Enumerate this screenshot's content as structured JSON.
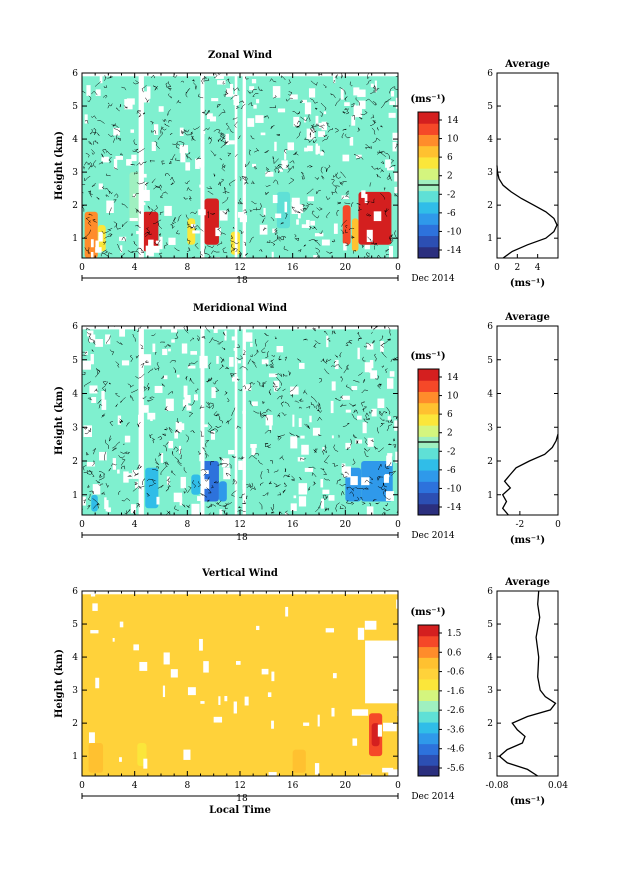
{
  "chart_data": [
    {
      "type": "heatmap",
      "title": "Zonal Wind",
      "xlabel": "",
      "ylabel": "Height (km)",
      "x_ticks": [
        "0",
        "4",
        "8",
        "12",
        "16",
        "20",
        "0"
      ],
      "x_range": [
        0,
        24
      ],
      "y_ticks": [
        "1",
        "2",
        "3",
        "4",
        "5",
        "6"
      ],
      "y_range": [
        0.4,
        6
      ],
      "date_label": "18",
      "month_label": "Dec 2014",
      "colorbar": {
        "unit": "(ms⁻¹)",
        "ticks": [
          "14",
          "10",
          "6",
          "2",
          "-2",
          "-6",
          "-10",
          "-14"
        ],
        "range": [
          -16,
          16
        ],
        "colors": [
          "#2b2f7e",
          "#2c4fb3",
          "#2d72dc",
          "#2f99ea",
          "#30bde8",
          "#5fe0d6",
          "#9ff0c0",
          "#d4f57e",
          "#fbe63a",
          "#ffc130",
          "#ff8c2b",
          "#f54828",
          "#d41f1f"
        ]
      },
      "blocks": [
        {
          "x0": 3.6,
          "x1": 4.6,
          "y0": 1.5,
          "y1": 3.0,
          "v": -1
        },
        {
          "x0": 4.6,
          "x1": 5.8,
          "y0": 0.6,
          "y1": 1.8,
          "v": 14
        },
        {
          "x0": 0.2,
          "x1": 1.2,
          "y0": 0.4,
          "y1": 1.8,
          "v": 9
        },
        {
          "x0": 1.2,
          "x1": 1.8,
          "y0": 0.6,
          "y1": 1.4,
          "v": 4
        },
        {
          "x0": 9.3,
          "x1": 10.4,
          "y0": 0.8,
          "y1": 2.2,
          "v": 14
        },
        {
          "x0": 8.0,
          "x1": 8.6,
          "y0": 0.8,
          "y1": 1.6,
          "v": 4
        },
        {
          "x0": 11.3,
          "x1": 12.0,
          "y0": 0.5,
          "y1": 1.2,
          "v": 6
        },
        {
          "x0": 14.8,
          "x1": 15.8,
          "y0": 1.3,
          "y1": 2.4,
          "v": -3
        },
        {
          "x0": 19.8,
          "x1": 20.4,
          "y0": 0.8,
          "y1": 2.0,
          "v": 12
        },
        {
          "x0": 21.0,
          "x1": 23.5,
          "y0": 0.8,
          "y1": 2.4,
          "v": 14
        },
        {
          "x0": 20.5,
          "x1": 21.0,
          "y0": 0.6,
          "y1": 1.6,
          "v": 7
        }
      ],
      "average_profile": {
        "title": "Average",
        "xlabel": "(ms⁻¹)",
        "x_ticks": [
          "0",
          "2",
          "4"
        ],
        "x_range": [
          0,
          6
        ],
        "y_ticks": [
          "1",
          "2",
          "3",
          "4",
          "5",
          "6"
        ],
        "y_range": [
          0.4,
          6
        ],
        "points": [
          [
            0.6,
            0.4
          ],
          [
            1.5,
            0.6
          ],
          [
            3.0,
            0.8
          ],
          [
            4.8,
            1.0
          ],
          [
            5.6,
            1.2
          ],
          [
            5.9,
            1.4
          ],
          [
            5.6,
            1.6
          ],
          [
            4.8,
            1.8
          ],
          [
            3.6,
            2.0
          ],
          [
            2.4,
            2.2
          ],
          [
            1.4,
            2.4
          ],
          [
            0.6,
            2.6
          ],
          [
            0.2,
            2.8
          ],
          [
            0.05,
            3.0
          ],
          [
            0,
            3.2
          ]
        ]
      }
    },
    {
      "type": "heatmap",
      "title": "Meridional Wind",
      "xlabel": "",
      "ylabel": "Height (km)",
      "x_ticks": [
        "0",
        "4",
        "8",
        "12",
        "16",
        "20",
        "0"
      ],
      "x_range": [
        0,
        24
      ],
      "y_ticks": [
        "1",
        "2",
        "3",
        "4",
        "5",
        "6"
      ],
      "y_range": [
        0.4,
        6
      ],
      "date_label": "18",
      "month_label": "Dec 2014",
      "colorbar": {
        "unit": "(ms⁻¹)",
        "ticks": [
          "14",
          "10",
          "6",
          "2",
          "-2",
          "-6",
          "-10",
          "-14"
        ],
        "range": [
          -16,
          16
        ],
        "colors": [
          "#2b2f7e",
          "#2c4fb3",
          "#2d72dc",
          "#2f99ea",
          "#30bde8",
          "#5fe0d6",
          "#9ff0c0",
          "#d4f57e",
          "#fbe63a",
          "#ffc130",
          "#ff8c2b",
          "#f54828",
          "#d41f1f"
        ]
      },
      "blocks": [
        {
          "x0": 4.8,
          "x1": 5.8,
          "y0": 0.6,
          "y1": 1.8,
          "v": -5
        },
        {
          "x0": 9.0,
          "x1": 10.4,
          "y0": 0.8,
          "y1": 2.0,
          "v": -10
        },
        {
          "x0": 8.3,
          "x1": 9.0,
          "y0": 1.0,
          "y1": 1.6,
          "v": -6
        },
        {
          "x0": 10.4,
          "x1": 11.0,
          "y0": 0.8,
          "y1": 1.4,
          "v": -7
        },
        {
          "x0": 20.0,
          "x1": 21.2,
          "y0": 0.8,
          "y1": 1.8,
          "v": -8
        },
        {
          "x0": 21.2,
          "x1": 23.6,
          "y0": 0.8,
          "y1": 2.0,
          "v": -7
        },
        {
          "x0": 0.7,
          "x1": 1.2,
          "y0": 0.5,
          "y1": 1.0,
          "v": -4
        }
      ],
      "average_profile": {
        "title": "Average",
        "xlabel": "(ms⁻¹)",
        "x_ticks": [
          "-2",
          "0"
        ],
        "x_range": [
          -3.2,
          0
        ],
        "y_ticks": [
          "1",
          "2",
          "3",
          "4",
          "5",
          "6"
        ],
        "y_range": [
          0.4,
          6
        ],
        "points": [
          [
            -2.6,
            0.4
          ],
          [
            -2.9,
            0.6
          ],
          [
            -2.7,
            0.8
          ],
          [
            -2.9,
            1.0
          ],
          [
            -2.5,
            1.2
          ],
          [
            -2.8,
            1.4
          ],
          [
            -2.5,
            1.6
          ],
          [
            -2.2,
            1.8
          ],
          [
            -1.5,
            2.0
          ],
          [
            -0.7,
            2.2
          ],
          [
            -0.3,
            2.4
          ],
          [
            -0.1,
            2.6
          ],
          [
            0,
            2.8
          ]
        ]
      }
    },
    {
      "type": "heatmap",
      "title": "Vertical Wind",
      "xlabel": "Local Time",
      "ylabel": "Height (km)",
      "x_ticks": [
        "0",
        "4",
        "8",
        "12",
        "16",
        "20",
        "0"
      ],
      "x_range": [
        0,
        24
      ],
      "y_ticks": [
        "1",
        "2",
        "3",
        "4",
        "5",
        "6"
      ],
      "y_range": [
        0.4,
        6
      ],
      "date_label": "18",
      "month_label": "Dec 2014",
      "colorbar": {
        "unit": "(ms⁻¹)",
        "ticks": [
          "1.5",
          "0.6",
          "-0.6",
          "-1.6",
          "-2.6",
          "-3.6",
          "-4.6",
          "-5.6"
        ],
        "range": [
          -6,
          2
        ],
        "colors": [
          "#2b2f7e",
          "#2c4fb3",
          "#2d72dc",
          "#2f99ea",
          "#30bde8",
          "#5fe0d6",
          "#9ff0c0",
          "#d4f57e",
          "#fbe63a",
          "#ffd23a",
          "#ffc130",
          "#ff8c2b",
          "#f54828",
          "#d41f1f"
        ]
      },
      "blocks": [
        {
          "x0": 3.6,
          "x1": 5.4,
          "y0": 0.5,
          "y1": 2.0,
          "v": -0.4
        },
        {
          "x0": 4.2,
          "x1": 4.9,
          "y0": 0.7,
          "y1": 1.4,
          "v": -1.2
        },
        {
          "x0": 9.0,
          "x1": 10.2,
          "y0": 0.6,
          "y1": 1.8,
          "v": -0.3
        },
        {
          "x0": 11.2,
          "x1": 12.6,
          "y0": 0.6,
          "y1": 1.7,
          "v": -0.4
        },
        {
          "x0": 0.5,
          "x1": 1.6,
          "y0": 0.5,
          "y1": 1.4,
          "v": 0.1
        },
        {
          "x0": 21.8,
          "x1": 22.8,
          "y0": 1.0,
          "y1": 2.3,
          "v": 1.0
        },
        {
          "x0": 22.0,
          "x1": 22.6,
          "y0": 1.3,
          "y1": 2.0,
          "v": 1.6
        },
        {
          "x0": 16.0,
          "x1": 17.0,
          "y0": 0.5,
          "y1": 1.2,
          "v": 0.2
        }
      ],
      "average_profile": {
        "title": "Average",
        "xlabel": "(ms⁻¹)",
        "x_ticks": [
          "-0.08",
          "0.04"
        ],
        "x_range": [
          -0.08,
          0.04
        ],
        "y_ticks": [
          "1",
          "2",
          "3",
          "4",
          "5",
          "6"
        ],
        "y_range": [
          0.4,
          6
        ],
        "points": [
          [
            0.0,
            0.4
          ],
          [
            -0.02,
            0.6
          ],
          [
            -0.06,
            0.8
          ],
          [
            -0.075,
            1.0
          ],
          [
            -0.06,
            1.2
          ],
          [
            -0.03,
            1.4
          ],
          [
            -0.025,
            1.6
          ],
          [
            -0.04,
            1.8
          ],
          [
            -0.05,
            2.0
          ],
          [
            -0.02,
            2.2
          ],
          [
            0.025,
            2.4
          ],
          [
            0.035,
            2.6
          ],
          [
            0.015,
            2.8
          ],
          [
            0.005,
            3.0
          ],
          [
            0.0,
            3.4
          ],
          [
            0.002,
            4.0
          ],
          [
            -0.003,
            4.6
          ],
          [
            0.004,
            5.2
          ],
          [
            0.0,
            5.6
          ],
          [
            0.002,
            6.0
          ]
        ]
      }
    }
  ]
}
